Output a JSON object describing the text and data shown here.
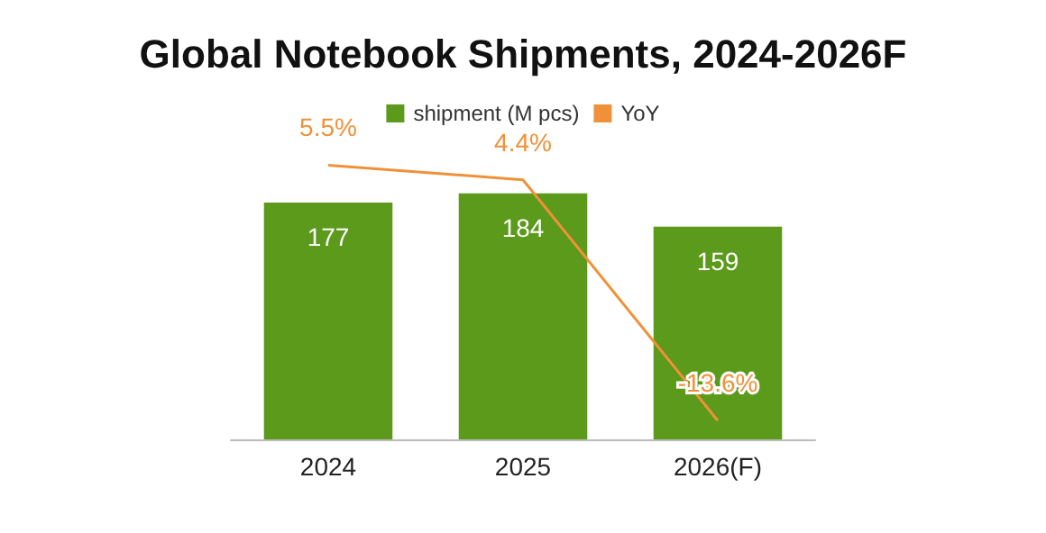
{
  "chart_data": {
    "type": "bar",
    "title": "Global Notebook Shipments, 2024-2026F",
    "categories": [
      "2024",
      "2025",
      "2026(F)"
    ],
    "series": [
      {
        "name": "shipment (M pcs)",
        "color": "#5b9a1a",
        "values": [
          177,
          184,
          159
        ],
        "value_labels": [
          "177",
          "184",
          "159"
        ]
      },
      {
        "name": "YoY",
        "type": "line",
        "axis": "y2",
        "color": "#f0913a",
        "values": [
          5.5,
          4.4,
          -13.6
        ],
        "value_labels": [
          "5.5%",
          "4.4%",
          "-13.6%"
        ]
      }
    ],
    "legend": "top",
    "marker": "none"
  }
}
